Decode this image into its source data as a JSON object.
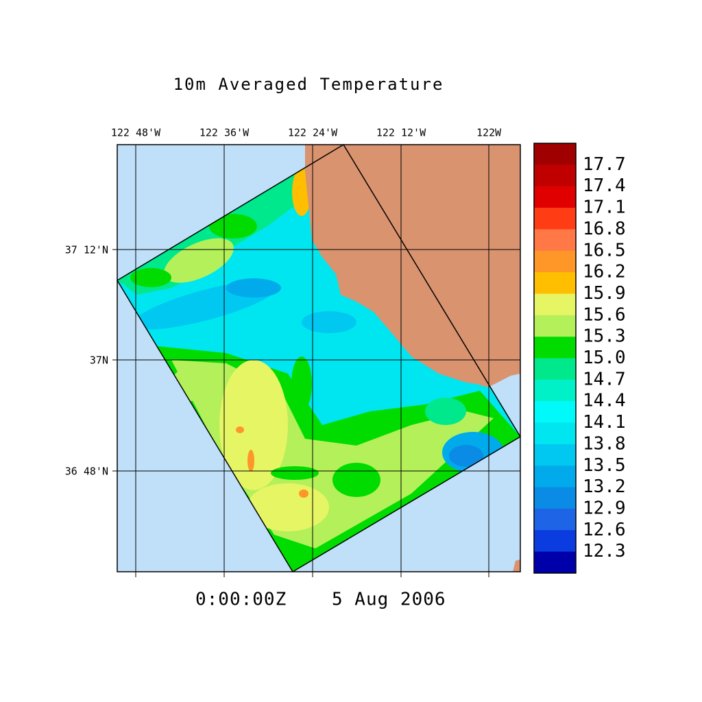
{
  "title": "10m Averaged Temperature",
  "lon_labels": [
    "122 48'W",
    "122 36'W",
    "122 24'W",
    "122 12'W",
    "122W"
  ],
  "lat_labels": [
    "37 12'N",
    "37N",
    "36 48'N"
  ],
  "time": "0:00:00Z",
  "date": "5 Aug 2006",
  "colorbar": {
    "labels": [
      "17.7",
      "17.4",
      "17.1",
      "16.8",
      "16.5",
      "16.2",
      "15.9",
      "15.6",
      "15.3",
      "15.0",
      "14.7",
      "14.4",
      "14.1",
      "13.8",
      "13.5",
      "13.2",
      "12.9",
      "12.6",
      "12.3"
    ],
    "colors": [
      "#a00000",
      "#c00000",
      "#e10000",
      "#ff3c14",
      "#ff7846",
      "#ff9628",
      "#ffbe00",
      "#e6f564",
      "#b4f05a",
      "#00dc00",
      "#00e88c",
      "#00f0c8",
      "#00fafa",
      "#00e6f0",
      "#00c8f0",
      "#00aaeb",
      "#0a8ce6",
      "#1e64e6",
      "#0a3ce0",
      "#0000aa"
    ]
  }
}
